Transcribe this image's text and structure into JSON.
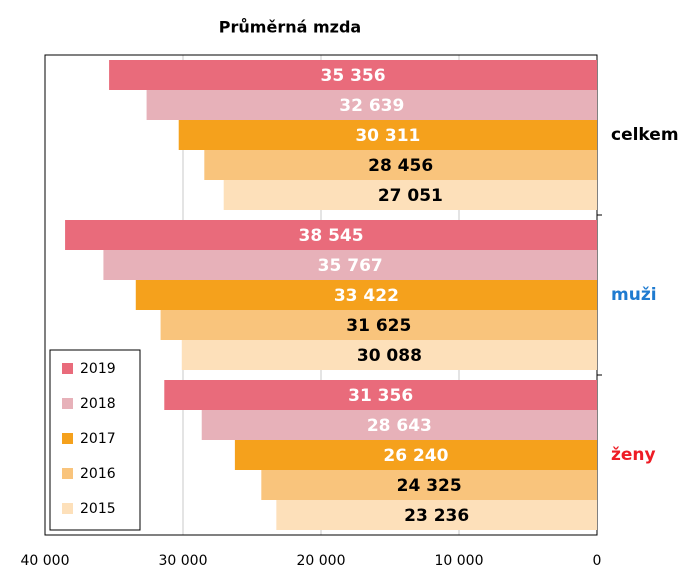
{
  "chart_data": {
    "type": "bar",
    "orientation": "horizontal",
    "title": "Průměrná mzda",
    "categories": [
      "celkem",
      "muži",
      "ženy"
    ],
    "category_colors": [
      "#000000",
      "#1f7bd0",
      "#ee1c25"
    ],
    "series": [
      {
        "name": "2019",
        "color": "#e96b7b",
        "label_color": "#ffffff",
        "values": [
          35356,
          38545,
          31356
        ],
        "value_labels": [
          "35 356",
          "38 545",
          "31 356"
        ]
      },
      {
        "name": "2018",
        "color": "#e7b1b9",
        "label_color": "#ffffff",
        "values": [
          32639,
          35767,
          28643
        ],
        "value_labels": [
          "32 639",
          "35 767",
          "28 643"
        ]
      },
      {
        "name": "2017",
        "color": "#f5a11c",
        "label_color": "#ffffff",
        "values": [
          30311,
          33422,
          26240
        ],
        "value_labels": [
          "30 311",
          "33 422",
          "26 240"
        ]
      },
      {
        "name": "2016",
        "color": "#f9c47c",
        "label_color": "#000000",
        "values": [
          28456,
          31625,
          24325
        ],
        "value_labels": [
          "28 456",
          "31 625",
          "24 325"
        ]
      },
      {
        "name": "2015",
        "color": "#fde0ba",
        "label_color": "#000000",
        "values": [
          27051,
          30088,
          23236
        ],
        "value_labels": [
          "27 051",
          "30 088",
          "23 236"
        ]
      }
    ],
    "xlim": [
      40000,
      0
    ],
    "xticks": [
      {
        "value": 40000,
        "label": "40 000"
      },
      {
        "value": 30000,
        "label": "30 000"
      },
      {
        "value": 20000,
        "label": "20 000"
      },
      {
        "value": 10000,
        "label": "10 000"
      },
      0
    ],
    "grid": true,
    "legend": "bottom-left"
  }
}
